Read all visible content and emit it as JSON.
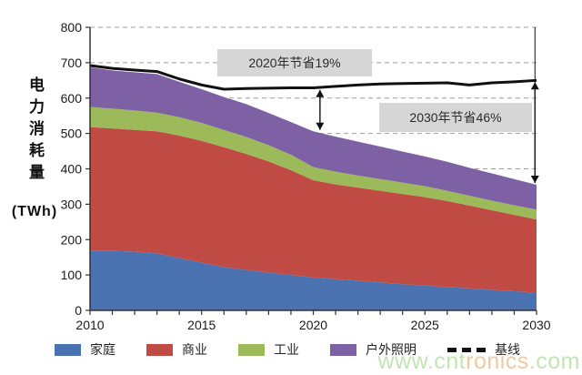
{
  "page": {
    "background": "#ffffff"
  },
  "y_axis": {
    "title_vertical": "电力消耗量",
    "unit": "(TWh)"
  },
  "chart_data": {
    "type": "area",
    "stacked": true,
    "title": "",
    "xlabel": "",
    "ylabel": "电力消耗量 (TWh)",
    "xlim": [
      2010,
      2030
    ],
    "ylim": [
      0,
      800
    ],
    "grid": "dashed-horizontal",
    "y_ticks": [
      0,
      100,
      200,
      300,
      400,
      500,
      600,
      700,
      800
    ],
    "x_ticks": [
      2010,
      2015,
      2020,
      2025,
      2030
    ],
    "x": [
      2010,
      2011,
      2012,
      2013,
      2014,
      2015,
      2016,
      2017,
      2018,
      2019,
      2020,
      2021,
      2022,
      2023,
      2024,
      2025,
      2026,
      2027,
      2028,
      2029,
      2030
    ],
    "series": [
      {
        "name": "家庭",
        "color": "#4a72b0",
        "values": [
          168,
          168,
          166,
          161,
          148,
          135,
          122,
          114,
          107,
          100,
          93,
          88,
          84,
          79,
          74,
          70,
          66,
          62,
          58,
          54,
          50
        ]
      },
      {
        "name": "商业",
        "color": "#bf4b44",
        "values": [
          350,
          346,
          344,
          345,
          346,
          344,
          339,
          328,
          314,
          296,
          275,
          268,
          263,
          259,
          255,
          250,
          243,
          234,
          225,
          216,
          207
        ]
      },
      {
        "name": "工业",
        "color": "#9cba59",
        "values": [
          57,
          56,
          55,
          53,
          52,
          51,
          49,
          48,
          46,
          44,
          37,
          36,
          34,
          33,
          32,
          31,
          29,
          28,
          27,
          27,
          28
        ]
      },
      {
        "name": "户外照明",
        "color": "#7e60a5",
        "values": [
          112,
          108,
          108,
          109,
          100,
          95,
          93,
          93,
          91,
          92,
          101,
          99,
          96,
          92,
          88,
          84,
          82,
          79,
          77,
          74,
          70
        ]
      }
    ],
    "line_series": {
      "name": "基线",
      "color": "#111111",
      "values": [
        692,
        684,
        679,
        675,
        654,
        637,
        625,
        627,
        628,
        629,
        629,
        633,
        637,
        640,
        641,
        642,
        643,
        637,
        643,
        646,
        650
      ]
    },
    "arrows": [
      {
        "year": 2020.3,
        "top_value": 623,
        "bottom_value": 510
      },
      {
        "year": 2029.93,
        "top_value": 645,
        "bottom_value": 360,
        "extend_to": 800
      }
    ],
    "annotations": [
      {
        "text": "2020年节省19%"
      },
      {
        "text": "2030年节省46%"
      }
    ],
    "legend_position": "bottom"
  },
  "legend": {
    "items": [
      {
        "label": "家庭",
        "color": "#4a72b0",
        "marker": "swatch"
      },
      {
        "label": "商业",
        "color": "#bf4b44",
        "marker": "swatch"
      },
      {
        "label": "工业",
        "color": "#9cba59",
        "marker": "swatch"
      },
      {
        "label": "户外照明",
        "color": "#7e60a5",
        "marker": "swatch"
      },
      {
        "label": "基线",
        "color": "#111111",
        "marker": "dashed-line"
      }
    ]
  },
  "watermark": {
    "part1": "www.cnt",
    "part2": "ronics",
    "part3": ".com",
    "green": "#bfe2ac",
    "orange": "#f0c498"
  }
}
